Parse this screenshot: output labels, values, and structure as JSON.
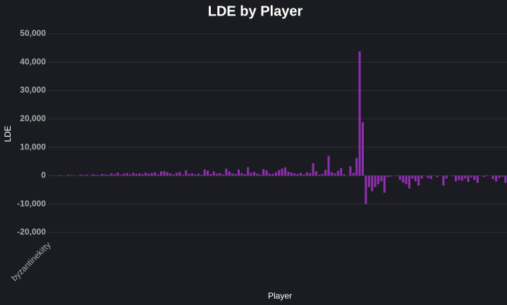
{
  "chart_data": {
    "type": "bar",
    "title": "LDE by Player",
    "x_label": "Player",
    "y_label": "LDE",
    "color": "#8e2fb0",
    "grid": true,
    "categories": [
      "byzantinekitty",
      null,
      null,
      null,
      null,
      null,
      null,
      null,
      null,
      null,
      null,
      null,
      null,
      null,
      null,
      null,
      null,
      null,
      null,
      null,
      null,
      null,
      null,
      null,
      null,
      null,
      null,
      null,
      null,
      null,
      null,
      null,
      null,
      null,
      null,
      null,
      null,
      null,
      null,
      null,
      null,
      null,
      null,
      null,
      null,
      null,
      null,
      null,
      null,
      null,
      null,
      null,
      null,
      null,
      null,
      null,
      null,
      null,
      null,
      null,
      null,
      null,
      null,
      null,
      null,
      null,
      null,
      null,
      null,
      null,
      null,
      null,
      null,
      null,
      null,
      null,
      null,
      null,
      null,
      null,
      null,
      null,
      null,
      null,
      null,
      null,
      null,
      null,
      null,
      null,
      null,
      null,
      null,
      null,
      null,
      null,
      null,
      null,
      null,
      null,
      null,
      null,
      null,
      null,
      null,
      null,
      null,
      null,
      null,
      null,
      null,
      null,
      null,
      null,
      null,
      null,
      null,
      null,
      null,
      null,
      null,
      null,
      null,
      null,
      null,
      null,
      null,
      null,
      null,
      null,
      null,
      null,
      null,
      null,
      null,
      null,
      null,
      null,
      null,
      null,
      null,
      null,
      null,
      null,
      null,
      null,
      null,
      null
    ],
    "values": [
      0,
      100,
      0,
      200,
      100,
      0,
      300,
      200,
      100,
      0,
      400,
      200,
      300,
      0,
      500,
      300,
      200,
      600,
      400,
      300,
      800,
      500,
      1100,
      300,
      700,
      900,
      400,
      1000,
      600,
      800,
      500,
      1100,
      700,
      900,
      1200,
      400,
      1500,
      1600,
      1200,
      800,
      400,
      1000,
      1300,
      300,
      1900,
      600,
      800,
      400,
      700,
      300,
      2200,
      1800,
      600,
      1500,
      700,
      900,
      400,
      2500,
      1500,
      800,
      600,
      2200,
      900,
      500,
      3000,
      1000,
      1300,
      700,
      400,
      2300,
      1800,
      700,
      600,
      1200,
      1900,
      2500,
      2900,
      1400,
      1100,
      800,
      600,
      1000,
      400,
      1200,
      900,
      4400,
      1500,
      300,
      600,
      2000,
      7000,
      1200,
      800,
      1700,
      2700,
      500,
      0,
      3300,
      1000,
      6200,
      43800,
      18800,
      -10000,
      -4000,
      -5500,
      -4000,
      -3000,
      -2000,
      -6000,
      -500,
      -300,
      0,
      -200,
      -1500,
      -2500,
      -3000,
      -4500,
      -1000,
      -2000,
      -3500,
      -1000,
      0,
      -800,
      -1200,
      0,
      -500,
      0,
      -3500,
      -1000,
      0,
      -200,
      -2000,
      -1500,
      -1800,
      -1000,
      -2200,
      -600,
      -1500,
      -2500,
      0,
      -500,
      -200,
      0,
      -1200,
      -2000,
      -800,
      -400,
      -2500
    ],
    "ylim": [
      -22500,
      50000
    ],
    "yticks": [
      {
        "value": -20000,
        "label": "-20,000"
      },
      {
        "value": -10000,
        "label": "-10,000"
      },
      0,
      {
        "value": 10000,
        "label": "10,000"
      },
      {
        "value": 20000,
        "label": "20,000"
      },
      {
        "value": 30000,
        "label": "30,000"
      },
      {
        "value": 40000,
        "label": "40,000"
      },
      {
        "value": 50000,
        "label": "50,000"
      }
    ]
  }
}
